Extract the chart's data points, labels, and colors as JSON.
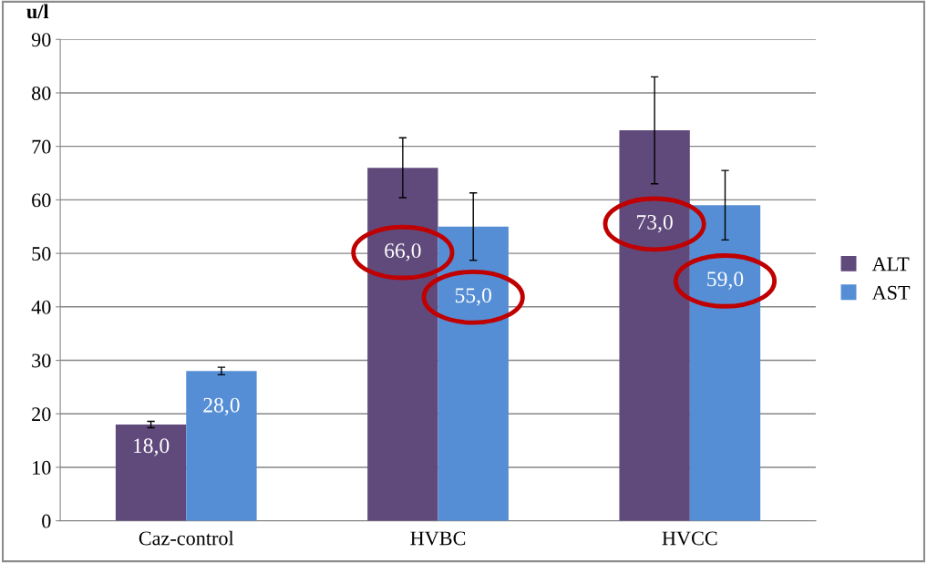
{
  "chart_data": {
    "type": "bar",
    "ylabel": "u/l",
    "categories": [
      "Caz-control",
      "HVBC",
      "HVCC"
    ],
    "series": [
      {
        "name": "ALT",
        "color": "#604a7b",
        "values": [
          18.0,
          66.0,
          73.0
        ],
        "errors": [
          0.6,
          5.6,
          10.0
        ],
        "value_labels": [
          "18,0",
          "66,0",
          "73,0"
        ]
      },
      {
        "name": "AST",
        "color": "#558ed5",
        "values": [
          28.0,
          55.0,
          59.0
        ],
        "errors": [
          0.7,
          6.3,
          6.5
        ],
        "value_labels": [
          "28,0",
          "55,0",
          "59,0"
        ]
      }
    ],
    "ylim": [
      0,
      90
    ],
    "yticks": [
      0,
      10,
      20,
      30,
      40,
      50,
      60,
      70,
      80,
      90
    ],
    "grid": "y",
    "legend": "right"
  }
}
